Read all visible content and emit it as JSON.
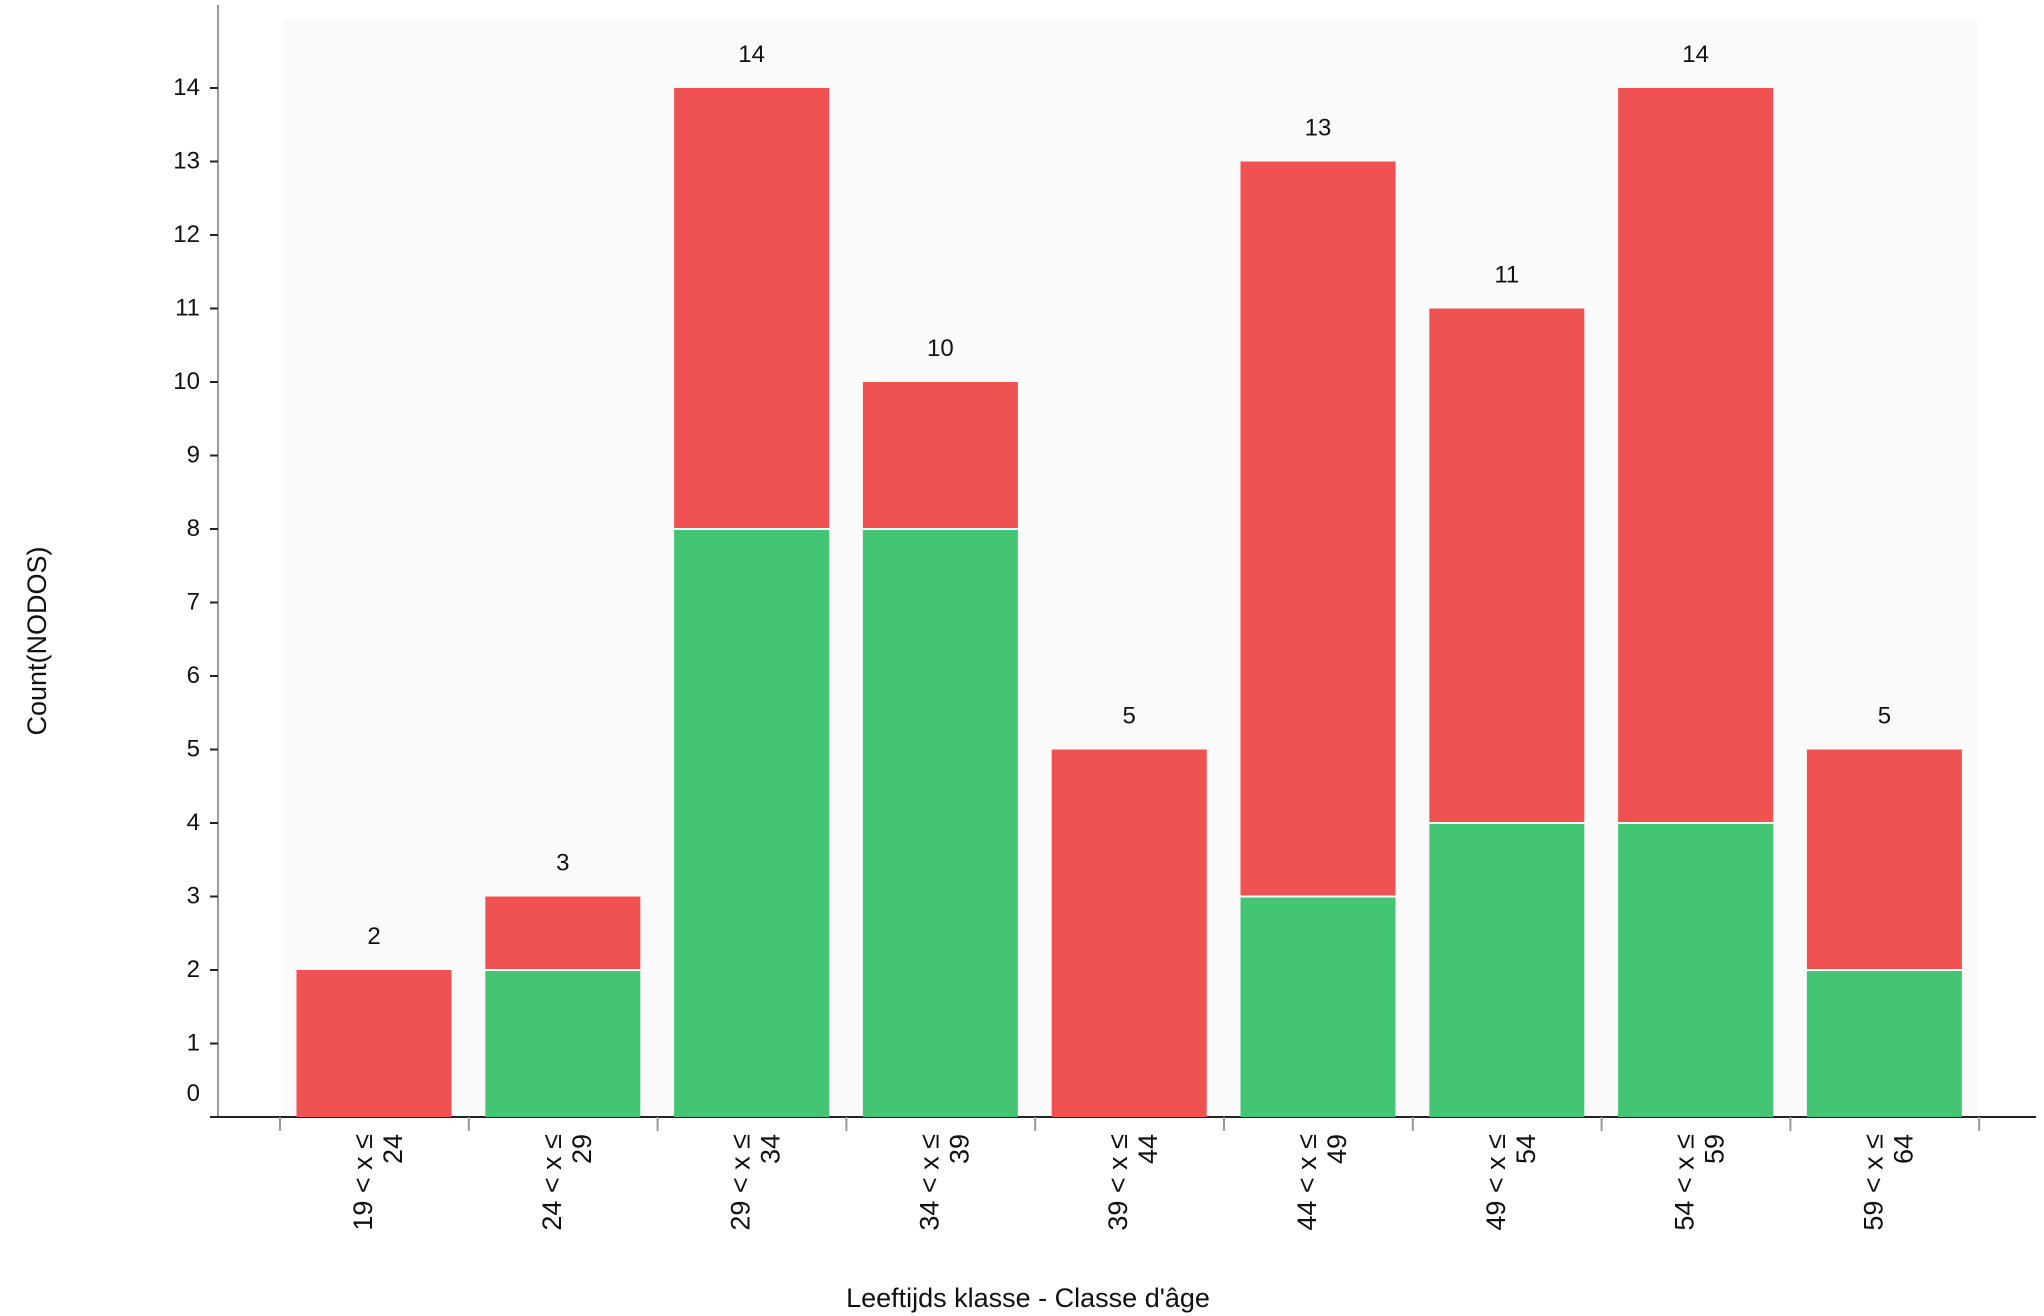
{
  "chart_data": {
    "type": "bar",
    "stacked": true,
    "title": "",
    "xlabel": "Leeftijds klasse - Classe d'âge",
    "ylabel": "Count(NODOS)",
    "ylim": [
      0,
      14
    ],
    "yticks": [
      0,
      1,
      2,
      3,
      4,
      5,
      6,
      7,
      8,
      9,
      10,
      11,
      12,
      13,
      14
    ],
    "grid": false,
    "legend": "none",
    "categories": [
      [
        "19 < x ≤",
        "24"
      ],
      [
        "24 < x ≤",
        "29"
      ],
      [
        "29 < x ≤",
        "34"
      ],
      [
        "34 < x ≤",
        "39"
      ],
      [
        "39 < x ≤",
        "44"
      ],
      [
        "44 < x ≤",
        "49"
      ],
      [
        "49 < x ≤",
        "54"
      ],
      [
        "54 < x ≤",
        "59"
      ],
      [
        "59 < x ≤",
        "64"
      ]
    ],
    "series": [
      {
        "color": "#44c574",
        "values": [
          0,
          2,
          8,
          8,
          0,
          3,
          4,
          4,
          2
        ]
      },
      {
        "color": "#f05252",
        "values": [
          2,
          1,
          6,
          2,
          5,
          10,
          7,
          10,
          3
        ]
      }
    ],
    "totals": [
      "2",
      "3",
      "14",
      "10",
      "5",
      "13",
      "11",
      "14",
      "5"
    ]
  }
}
